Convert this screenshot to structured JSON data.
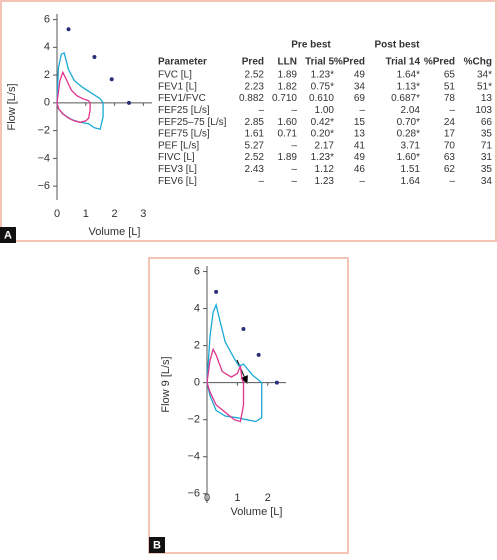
{
  "chart_data": [
    {
      "type": "line",
      "label": "A",
      "x_label": "Volume [L]",
      "y_label": "Flow [L/s]",
      "xlim": [
        0,
        3.3
      ],
      "ylim": [
        -7,
        6.4
      ],
      "xticks": [
        0,
        1,
        2,
        3
      ],
      "yticks": [
        6,
        4,
        2,
        0,
        {
          "value": -2,
          "label": "−2"
        },
        {
          "value": -4,
          "label": "−4"
        },
        {
          "value": -6,
          "label": "−6"
        }
      ],
      "series": [
        {
          "style": "line",
          "color": "#1aa9d6",
          "x": [
            0,
            0.05,
            0.15,
            0.25,
            0.4,
            0.6,
            0.9,
            1.2,
            1.5,
            1.6,
            1.6,
            1.5,
            1.3,
            1.1,
            0.8,
            0.5,
            0.2,
            0.05,
            0
          ],
          "values": [
            0,
            2.5,
            3.5,
            3.6,
            2.4,
            1.6,
            1.1,
            0.7,
            0.3,
            0,
            -1,
            -1.9,
            -1.8,
            -1.5,
            -1.4,
            -1.2,
            -0.8,
            -0.4,
            0
          ]
        },
        {
          "style": "line",
          "color": "#e0338c",
          "x": [
            0,
            0.1,
            0.2,
            0.3,
            0.5,
            0.7,
            0.9,
            1.1,
            1.15,
            1.15,
            1.1,
            1.0,
            0.8,
            0.6,
            0.4,
            0.2,
            0.05,
            0
          ],
          "values": [
            0,
            1.6,
            2.2,
            1.8,
            0.9,
            0.5,
            0.3,
            0.15,
            0,
            -0.5,
            -1.1,
            -1.3,
            -1.4,
            -1.3,
            -1.1,
            -0.8,
            -0.4,
            0
          ]
        },
        {
          "style": "markers",
          "color": "#2b2f7a",
          "x": [
            0.4,
            1.3,
            1.9,
            2.5
          ],
          "values": [
            5.3,
            3.3,
            1.7,
            0
          ]
        }
      ]
    },
    {
      "type": "line",
      "label": "B",
      "x_label": "Volume [L]",
      "y_label": "Flow 9 [L/s]",
      "xlim": [
        0,
        2.6
      ],
      "ylim": [
        -6.5,
        6.3
      ],
      "xticks": [
        0,
        1,
        2
      ],
      "yticks": [
        6,
        4,
        2,
        0,
        {
          "value": -2,
          "label": "−2"
        },
        {
          "value": -4,
          "label": "−4"
        },
        {
          "value": -6,
          "label": "−6"
        }
      ],
      "series": [
        {
          "style": "line",
          "color": "#1aa9d6",
          "x": [
            0,
            0.1,
            0.2,
            0.3,
            0.4,
            0.6,
            0.9,
            1.05,
            1.2,
            1.5,
            1.8,
            1.8,
            1.6,
            1.3,
            1.0,
            0.6,
            0.3,
            0.1,
            0
          ],
          "values": [
            0,
            2.5,
            3.8,
            4.2,
            3.5,
            2.2,
            1.3,
            0.9,
            1.0,
            0.4,
            0,
            -1.9,
            -2.1,
            -2.0,
            -1.9,
            -1.8,
            -1.5,
            -0.7,
            0
          ]
        },
        {
          "style": "line",
          "color": "#e0338c",
          "x": [
            0,
            0.1,
            0.2,
            0.3,
            0.5,
            0.8,
            1.0,
            1.1,
            1.15,
            1.2,
            1.2,
            1.1,
            0.9,
            0.6,
            0.3,
            0.1,
            0
          ],
          "values": [
            0,
            1.2,
            1.8,
            1.5,
            0.6,
            0.3,
            0.5,
            0.9,
            0.2,
            0,
            -1.2,
            -2.1,
            -2.0,
            -1.6,
            -1.2,
            -0.5,
            0
          ]
        },
        {
          "style": "markers",
          "color": "#2b2f7a",
          "x": [
            0.3,
            1.2,
            1.7,
            2.3
          ],
          "values": [
            4.9,
            2.9,
            1.5,
            0
          ]
        }
      ]
    }
  ],
  "table": {
    "groups": [
      "Pre best",
      "Post best"
    ],
    "header": [
      "Parameter",
      "Pred",
      "LLN",
      "Trial 5",
      "%Pred",
      "Trial 14",
      "%Pred",
      "%Chg"
    ],
    "rows": [
      [
        "FVC [L]",
        "2.52",
        "1.89",
        "1.23*",
        "49",
        "1.64*",
        "65",
        "34*"
      ],
      [
        "FEV1 [L]",
        "2.23",
        "1.82",
        "0.75*",
        "34",
        "1.13*",
        "51",
        "51*"
      ],
      [
        "FEV1/FVC",
        "0.882",
        "0.710",
        "0.610",
        "69",
        "0.687*",
        "78",
        "13"
      ],
      [
        "FEF25 [L/s]",
        "–",
        "–",
        "1.00",
        "–",
        "2.04",
        "–",
        "103"
      ],
      [
        "FEF25–75 [L/s]",
        "2.85",
        "1.60",
        "0.42*",
        "15",
        "0.70*",
        "24",
        "66"
      ],
      [
        "FEF75 [L/s]",
        "1.61",
        "0.71",
        "0.20*",
        "13",
        "0.28*",
        "17",
        "35"
      ],
      [
        "PEF [L/s]",
        "5.27",
        "–",
        "2.17",
        "41",
        "3.71",
        "70",
        "71"
      ],
      [
        "FIVC [L]",
        "2.52",
        "1.89",
        "1.23*",
        "49",
        "1.60*",
        "63",
        "31"
      ],
      [
        "FEV3 [L]",
        "2.43",
        "–",
        "1.12",
        "46",
        "1.51",
        "62",
        "35"
      ],
      [
        "FEV6 [L]",
        "–",
        "–",
        "1.23",
        "–",
        "1.64",
        "–",
        "34"
      ]
    ]
  }
}
